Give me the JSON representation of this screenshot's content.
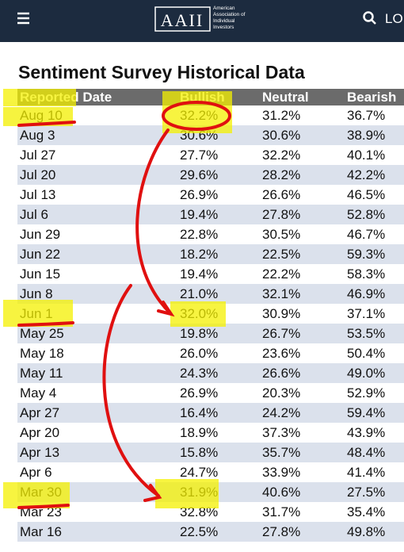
{
  "header": {
    "logo_mark": "AAII",
    "logo_text": [
      "American",
      "Association of",
      "Individual",
      "Investors"
    ],
    "login": "LO"
  },
  "title": "Sentiment Survey Historical Data",
  "table": {
    "headers": [
      "Reported Date",
      "Bullish",
      "Neutral",
      "Bearish"
    ],
    "rows": [
      [
        "Aug 10",
        "32.2%",
        "31.2%",
        "36.7%"
      ],
      [
        "Aug 3",
        "30.6%",
        "30.6%",
        "38.9%"
      ],
      [
        "Jul 27",
        "27.7%",
        "32.2%",
        "40.1%"
      ],
      [
        "Jul 20",
        "29.6%",
        "28.2%",
        "42.2%"
      ],
      [
        "Jul 13",
        "26.9%",
        "26.6%",
        "46.5%"
      ],
      [
        "Jul 6",
        "19.4%",
        "27.8%",
        "52.8%"
      ],
      [
        "Jun 29",
        "22.8%",
        "30.5%",
        "46.7%"
      ],
      [
        "Jun 22",
        "18.2%",
        "22.5%",
        "59.3%"
      ],
      [
        "Jun 15",
        "19.4%",
        "22.2%",
        "58.3%"
      ],
      [
        "Jun 8",
        "21.0%",
        "32.1%",
        "46.9%"
      ],
      [
        "Jun 1",
        "32.0%",
        "30.9%",
        "37.1%"
      ],
      [
        "May 25",
        "19.8%",
        "26.7%",
        "53.5%"
      ],
      [
        "May 18",
        "26.0%",
        "23.6%",
        "50.4%"
      ],
      [
        "May 11",
        "24.3%",
        "26.6%",
        "49.0%"
      ],
      [
        "May 4",
        "26.9%",
        "20.3%",
        "52.9%"
      ],
      [
        "Apr 27",
        "16.4%",
        "24.2%",
        "59.4%"
      ],
      [
        "Apr 20",
        "18.9%",
        "37.3%",
        "43.9%"
      ],
      [
        "Apr 13",
        "15.8%",
        "35.7%",
        "48.4%"
      ],
      [
        "Apr 6",
        "24.7%",
        "33.9%",
        "41.4%"
      ],
      [
        "Mar 30",
        "31.9%",
        "40.6%",
        "27.5%"
      ],
      [
        "Mar 23",
        "32.8%",
        "31.7%",
        "35.4%"
      ],
      [
        "Mar 16",
        "22.5%",
        "27.8%",
        "49.8%"
      ]
    ]
  }
}
